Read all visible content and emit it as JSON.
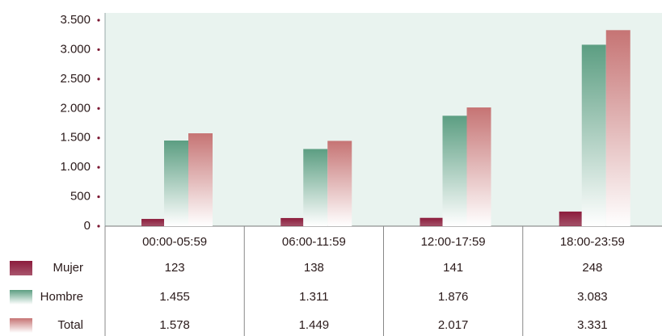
{
  "chart_data": {
    "type": "bar",
    "categories": [
      "00:00-05:59",
      "06:00-11:59",
      "12:00-17:59",
      "18:00-23:59"
    ],
    "series": [
      {
        "name": "Mujer",
        "color": "#8c1c3c",
        "values": [
          123,
          138,
          141,
          248
        ],
        "value_labels": [
          "123",
          "138",
          "141",
          "248"
        ]
      },
      {
        "name": "Hombre",
        "color": "#5c9e82",
        "values": [
          1455,
          1311,
          1876,
          3083
        ],
        "value_labels": [
          "1.455",
          "1.311",
          "1.876",
          "3.083"
        ]
      },
      {
        "name": "Total",
        "color": "#c67474",
        "values": [
          1578,
          1449,
          2017,
          3331
        ],
        "value_labels": [
          "1.578",
          "1.449",
          "2.017",
          "3.331"
        ]
      }
    ],
    "ylim": [
      0,
      3500
    ],
    "yticks": [
      0,
      500,
      {
        "value": 1000,
        "label": "1.000"
      },
      {
        "value": 1500,
        "label": "1.500"
      },
      {
        "value": 2000,
        "label": "2.000"
      },
      {
        "value": 2500,
        "label": "2.500"
      },
      {
        "value": 3000,
        "label": "3.000"
      },
      {
        "value": 3500,
        "label": "3.500"
      }
    ],
    "grid": false
  }
}
